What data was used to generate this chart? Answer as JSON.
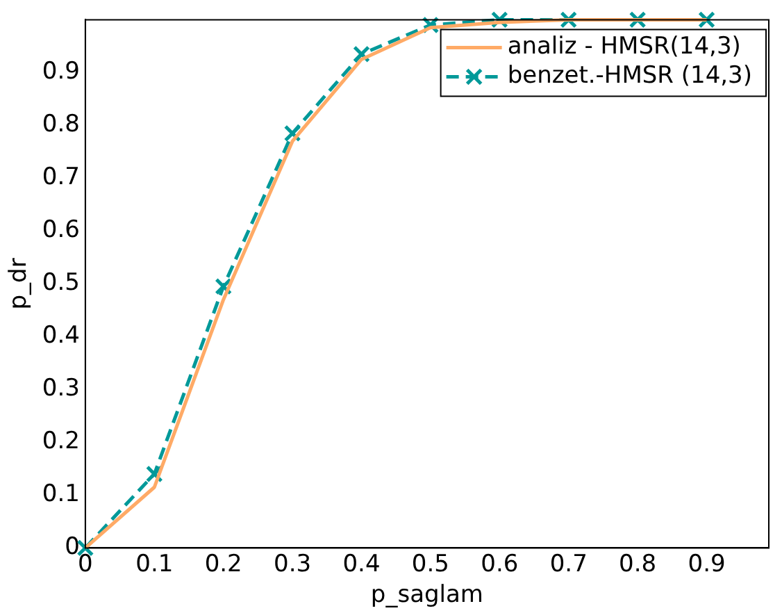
{
  "chart_data": {
    "type": "line",
    "xlabel": "p_saglam",
    "ylabel": "p_dr",
    "x": [
      0,
      0.1,
      0.2,
      0.3,
      0.4,
      0.5,
      0.6,
      0.7,
      0.8,
      0.9
    ],
    "series": [
      {
        "name": "analiz - HMSR(14,3)",
        "color": "#ffaa66",
        "values": [
          0,
          0.115,
          0.47,
          0.77,
          0.925,
          0.985,
          0.995,
          1,
          1,
          1
        ],
        "marker": "none",
        "line_style": "solid"
      },
      {
        "name": "benzet.-HMSR (14,3)",
        "color": "#009999",
        "values": [
          0,
          0.14,
          0.495,
          0.785,
          0.935,
          0.99,
          1,
          1,
          1,
          1
        ],
        "marker": "cross",
        "line_style": "dashed"
      }
    ],
    "xlim": [
      0,
      0.99
    ],
    "ylim": [
      0,
      1
    ],
    "xticks": [
      0,
      0.1,
      0.2,
      0.3,
      0.4,
      0.5,
      0.6,
      0.7,
      0.8,
      0.9
    ],
    "yticks": [
      0,
      0.1,
      0.2,
      0.3,
      0.4,
      0.5,
      0.6,
      0.7,
      0.8,
      0.9
    ],
    "grid": false,
    "legend": "top right"
  }
}
